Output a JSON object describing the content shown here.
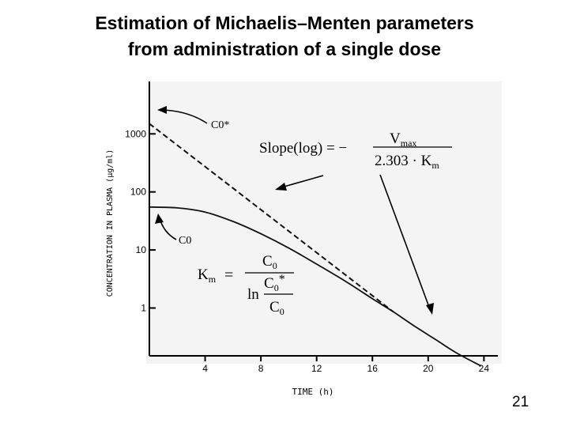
{
  "title_line1": "Estimation of Michaelis–Menten parameters",
  "title_line2": "from administration of a single dose",
  "page_number": "21",
  "chart_data": {
    "type": "line",
    "xlabel": "TIME (h)",
    "ylabel": "CONCENTRATION IN PLASMA (μg/ml)",
    "x_ticks": [
      "4",
      "8",
      "12",
      "16",
      "20",
      "24"
    ],
    "y_ticks": [
      "1",
      "10",
      "100",
      "1000"
    ],
    "xlim": [
      0,
      25
    ],
    "ylim": [
      0.15,
      8000
    ],
    "y_scale": "log",
    "series": [
      {
        "style": "solid",
        "x": [
          0,
          2,
          4,
          6,
          8,
          10,
          12,
          14,
          16,
          17.5,
          19,
          20.5,
          22,
          23.8
        ],
        "y": [
          55,
          53,
          45,
          31,
          19,
          10.8,
          5.7,
          2.95,
          1.45,
          0.86,
          0.49,
          0.29,
          0.17,
          0.1
        ]
      },
      {
        "style": "dashed",
        "x": [
          0,
          17.5
        ],
        "y": [
          1500,
          0.86
        ]
      }
    ],
    "annotations": {
      "c0_star": "C0*",
      "c0": "C0"
    }
  },
  "equations": {
    "slope_lhs": "Slope(log) = −",
    "slope_num": "V",
    "slope_num_sub": "max",
    "slope_den": "2.303 · K",
    "slope_den_sub": "m",
    "km_lhs": "K",
    "km_lhs_sub": "m",
    "km_eq": "=",
    "km_num": "C",
    "km_num_sub": "0",
    "km_ln": "ln",
    "km_inner_num": "C",
    "km_inner_num_sub": "0",
    "km_inner_star": "*",
    "km_inner_den": "C",
    "km_inner_den_sub": "0"
  }
}
